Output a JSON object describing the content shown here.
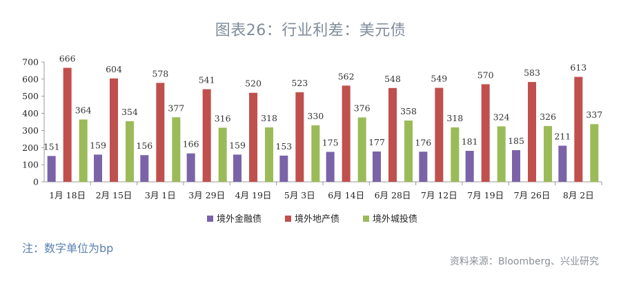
{
  "header": {
    "title": "图表26：行业利差：美元债"
  },
  "footer": {
    "note": "注：数字单位为bp",
    "source": "资料来源：Bloomberg、兴业研究"
  },
  "chart_data": {
    "type": "bar",
    "title": "图表26：行业利差：美元债",
    "xlabel": "",
    "ylabel": "",
    "ylim": [
      0,
      700
    ],
    "yticks": [
      0,
      100,
      200,
      300,
      400,
      500,
      600,
      700
    ],
    "grid": false,
    "legend_position": "bottom",
    "categories": [
      "1月 18日",
      "2月 15日",
      "3月 1日",
      "3月 29日",
      "4月 19日",
      "5月 3日",
      "6月 14日",
      "6月 28日",
      "7月 12日",
      "7月 19日",
      "7月 26日",
      "8月 2日"
    ],
    "series": [
      {
        "name": "境外金融债",
        "color": "#7b63a8",
        "values": [
          151,
          159,
          156,
          166,
          159,
          153,
          175,
          177,
          176,
          181,
          185,
          211
        ]
      },
      {
        "name": "境外地产债",
        "color": "#c0504d",
        "values": [
          666,
          604,
          578,
          541,
          520,
          523,
          562,
          548,
          549,
          570,
          583,
          613
        ]
      },
      {
        "name": "境外城投债",
        "color": "#9bbb59",
        "values": [
          364,
          354,
          377,
          316,
          318,
          330,
          376,
          358,
          318,
          324,
          326,
          337
        ]
      }
    ]
  }
}
